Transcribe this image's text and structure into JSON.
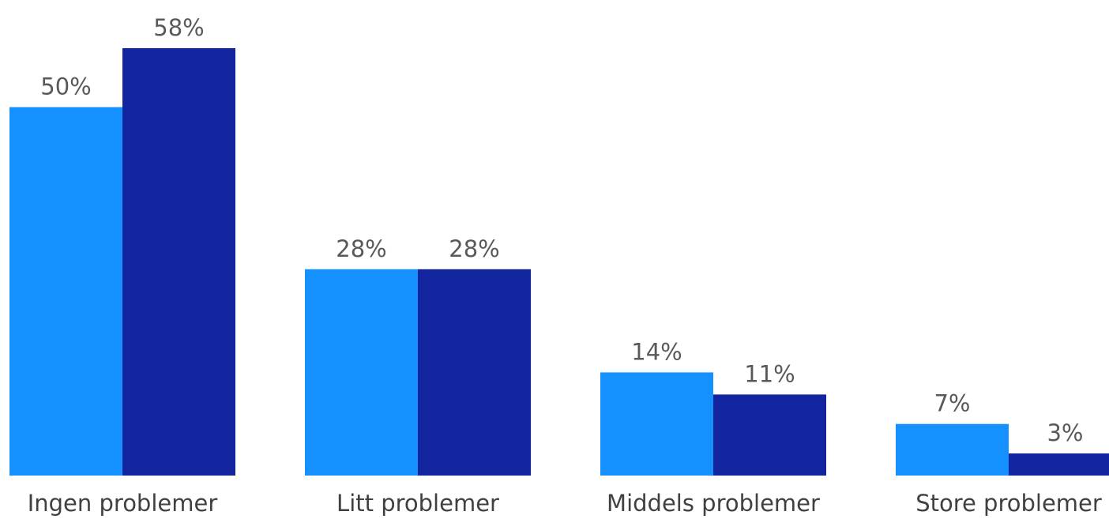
{
  "chart_data": {
    "type": "bar",
    "categories": [
      "Ingen problemer",
      "Litt problemer",
      "Middels problemer",
      "Store problemer"
    ],
    "series": [
      {
        "values": [
          50,
          28,
          14,
          7
        ],
        "labels": [
          "50%",
          "28%",
          "14%",
          "7%"
        ],
        "color": "#1590ff"
      },
      {
        "values": [
          58,
          28,
          11,
          3
        ],
        "labels": [
          "58%",
          "28%",
          "11%",
          "3%"
        ],
        "color": "#13249f"
      }
    ],
    "unit": "%",
    "title": "",
    "xlabel": "",
    "ylabel": "",
    "ylim": [
      0,
      58
    ],
    "grid": false,
    "legend": "none"
  }
}
